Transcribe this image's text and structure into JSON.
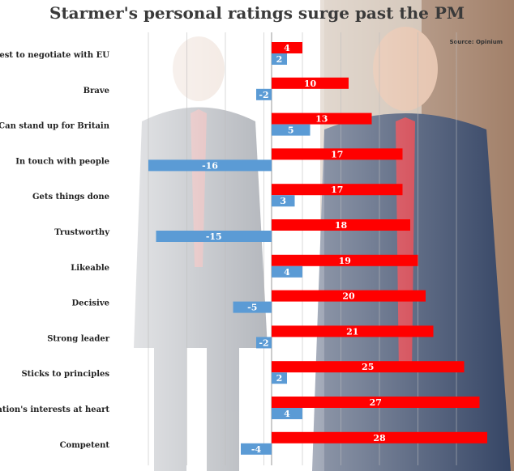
{
  "chart_data": {
    "type": "bar",
    "orientation": "horizontal",
    "title": "Starmer's personal ratings surge past the PM",
    "source": "Source: Opinium",
    "xlabel": "",
    "ylabel": "",
    "xlim": [
      -16,
      28
    ],
    "grid": true,
    "categories": [
      "Best to negotiate with EU",
      "Brave",
      "Can stand up for Britain",
      "In touch with people",
      "Gets things done",
      "Trustworthy",
      "Likeable",
      "Decisive",
      "Strong leader",
      "Sticks to principles",
      "Nation's interests at heart",
      "Competent"
    ],
    "series": [
      {
        "color": "#ff0000",
        "values": [
          4,
          10,
          13,
          17,
          17,
          18,
          19,
          20,
          21,
          25,
          27,
          28
        ]
      },
      {
        "color": "#5b9bd5",
        "values": [
          2,
          -2,
          5,
          -16,
          3,
          -15,
          4,
          -5,
          -2,
          2,
          4,
          -4
        ]
      }
    ]
  }
}
